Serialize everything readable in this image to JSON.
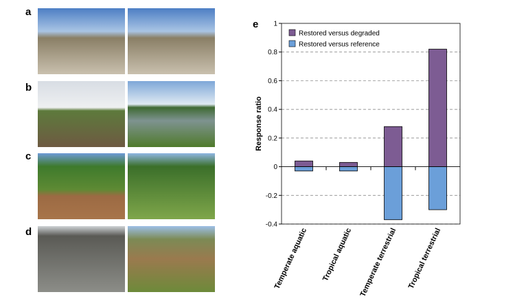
{
  "photo_panels": [
    {
      "label": "a"
    },
    {
      "label": "b"
    },
    {
      "label": "c"
    },
    {
      "label": "d"
    }
  ],
  "chart_data": {
    "type": "bar",
    "panel_label": "e",
    "y_label": "Response ratio",
    "categories": [
      "Temperate aquatic",
      "Tropical aquatic",
      "Temperate terrestrial",
      "Tropical terrestrial"
    ],
    "series": [
      {
        "name": "Restored versus degraded",
        "color": "#7d5c93",
        "values": [
          0.04,
          0.03,
          0.28,
          0.82
        ]
      },
      {
        "name": "Restored versus reference",
        "color": "#6b9fd9",
        "values": [
          -0.03,
          -0.03,
          -0.37,
          -0.3
        ]
      }
    ],
    "ylim": [
      -0.4,
      1
    ],
    "yticks": [
      -0.4,
      -0.2,
      0,
      0.2,
      0.4,
      0.6,
      0.8,
      1
    ],
    "grid": true,
    "legend": "upper-left"
  }
}
